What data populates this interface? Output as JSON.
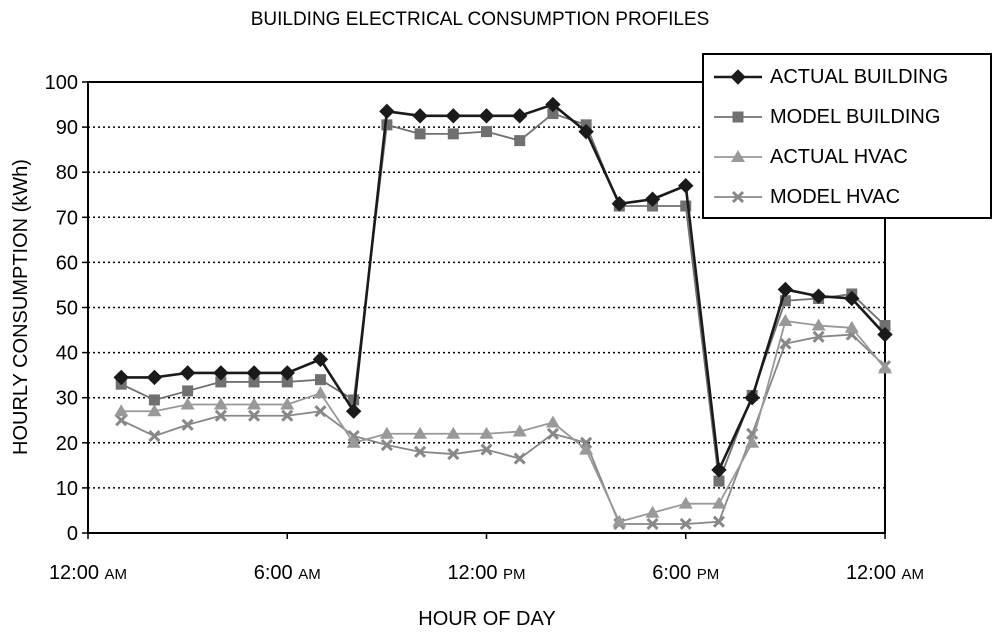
{
  "chart_data": {
    "type": "line",
    "title": "BUILDING ELECTRICAL CONSUMPTION PROFILES",
    "xlabel": "HOUR OF DAY",
    "ylabel": "HOURLY CONSUMPTION (kWh)",
    "xlim": [
      0,
      24
    ],
    "ylim": [
      0,
      100
    ],
    "yticks": [
      0,
      10,
      20,
      30,
      40,
      50,
      60,
      70,
      80,
      90,
      100
    ],
    "xticks": [
      {
        "value": 0,
        "main": "12:00 ",
        "small": "AM"
      },
      {
        "value": 6,
        "main": "6:00 ",
        "small": "AM"
      },
      {
        "value": 12,
        "main": "12:00 ",
        "small": "PM"
      },
      {
        "value": 18,
        "main": "6:00 ",
        "small": "PM"
      },
      {
        "value": 24,
        "main": "12:00 ",
        "small": "AM"
      }
    ],
    "grid": "horizontal-dotted",
    "legend_position": "top-right",
    "x": [
      1,
      2,
      3,
      4,
      5,
      6,
      7,
      8,
      9,
      10,
      11,
      12,
      13,
      14,
      15,
      16,
      17,
      18,
      19,
      20,
      21,
      22,
      23,
      24
    ],
    "series": [
      {
        "name": "ACTUAL BUILDING",
        "marker": "diamond",
        "color": "#1a1a1a",
        "line_width": 2.6,
        "values": [
          34.5,
          34.5,
          35.5,
          35.5,
          35.5,
          35.5,
          38.5,
          27,
          93.5,
          92.5,
          92.5,
          92.5,
          92.5,
          95,
          89,
          73,
          74,
          77,
          14,
          30,
          54,
          52.5,
          52,
          44
        ]
      },
      {
        "name": "MODEL BUILDING",
        "marker": "square",
        "color": "#707070",
        "line_width": 1.8,
        "values": [
          33,
          29.5,
          31.5,
          33.5,
          33.5,
          33.5,
          34,
          29.5,
          90.5,
          88.5,
          88.5,
          89,
          87,
          93,
          90.5,
          72.5,
          72.5,
          72.5,
          11.5,
          30.5,
          51.5,
          52,
          53,
          46
        ]
      },
      {
        "name": "ACTUAL HVAC",
        "marker": "triangle",
        "color": "#999999",
        "line_width": 1.8,
        "values": [
          27,
          27,
          28.5,
          28.5,
          28.5,
          28.5,
          31,
          20,
          22,
          22,
          22,
          22,
          22.5,
          24.5,
          18.5,
          2.5,
          4.5,
          6.5,
          6.5,
          20,
          47,
          46,
          45.5,
          36.5
        ]
      },
      {
        "name": "MODEL HVAC",
        "marker": "x",
        "color": "#888888",
        "line_width": 1.8,
        "values": [
          25,
          21.5,
          24,
          26,
          26,
          26,
          27,
          21.5,
          19.5,
          18,
          17.5,
          18.5,
          16.5,
          22,
          20,
          2,
          2,
          2,
          2.5,
          22,
          42,
          43.5,
          44,
          37
        ]
      }
    ]
  }
}
